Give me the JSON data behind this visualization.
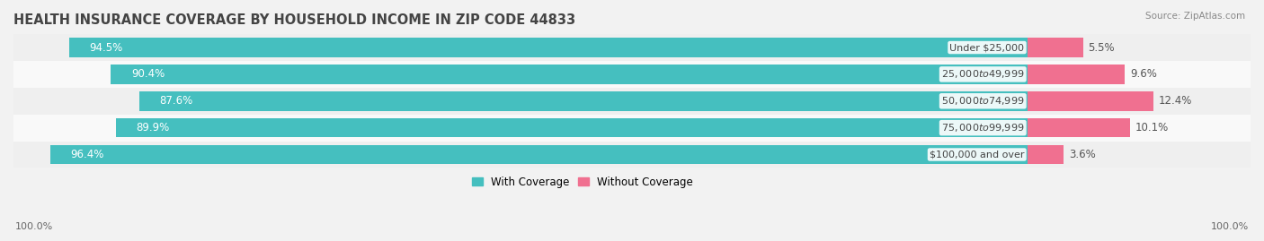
{
  "title": "HEALTH INSURANCE COVERAGE BY HOUSEHOLD INCOME IN ZIP CODE 44833",
  "source": "Source: ZipAtlas.com",
  "categories": [
    "Under $25,000",
    "$25,000 to $49,999",
    "$50,000 to $74,999",
    "$75,000 to $99,999",
    "$100,000 and over"
  ],
  "with_coverage": [
    94.5,
    90.4,
    87.6,
    89.9,
    96.4
  ],
  "without_coverage": [
    5.5,
    9.6,
    12.4,
    10.1,
    3.6
  ],
  "color_with": "#45BFBF",
  "color_without": "#F07090",
  "row_bg_even": "#EFEFEF",
  "row_bg_odd": "#F9F9F9",
  "title_fontsize": 10.5,
  "label_fontsize": 8.5,
  "tick_fontsize": 8,
  "bar_height": 0.72,
  "figsize": [
    14.06,
    2.69
  ],
  "dpi": 100,
  "left_axis_label": "100.0%",
  "right_axis_label": "100.0%",
  "legend_with": "With Coverage",
  "legend_without": "Without Coverage",
  "xlim_left": -100,
  "xlim_right": 22
}
